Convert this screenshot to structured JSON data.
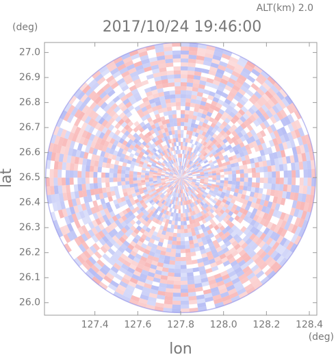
{
  "chart_data": {
    "type": "radar-ppi",
    "title": "2017/10/24 19:46:00",
    "altitude_label": "ALT(km) 2.0",
    "x_label": "lon",
    "y_label": "lat",
    "x_unit": "(deg)",
    "y_unit": "(deg)",
    "xlim": [
      127.165,
      128.435
    ],
    "ylim": [
      25.95,
      27.04
    ],
    "xticks": [
      127.4,
      127.6,
      127.8,
      {
        "value": 128.0,
        "label": "128.0"
      },
      128.2,
      128.4
    ],
    "yticks": [
      {
        "value": 26.0,
        "label": "26.0"
      },
      26.1,
      26.2,
      26.3,
      26.4,
      26.5,
      26.6,
      26.7,
      26.8,
      26.9,
      {
        "value": 27.0,
        "label": "27.0"
      }
    ],
    "center": [
      127.8,
      26.5
    ]
  }
}
